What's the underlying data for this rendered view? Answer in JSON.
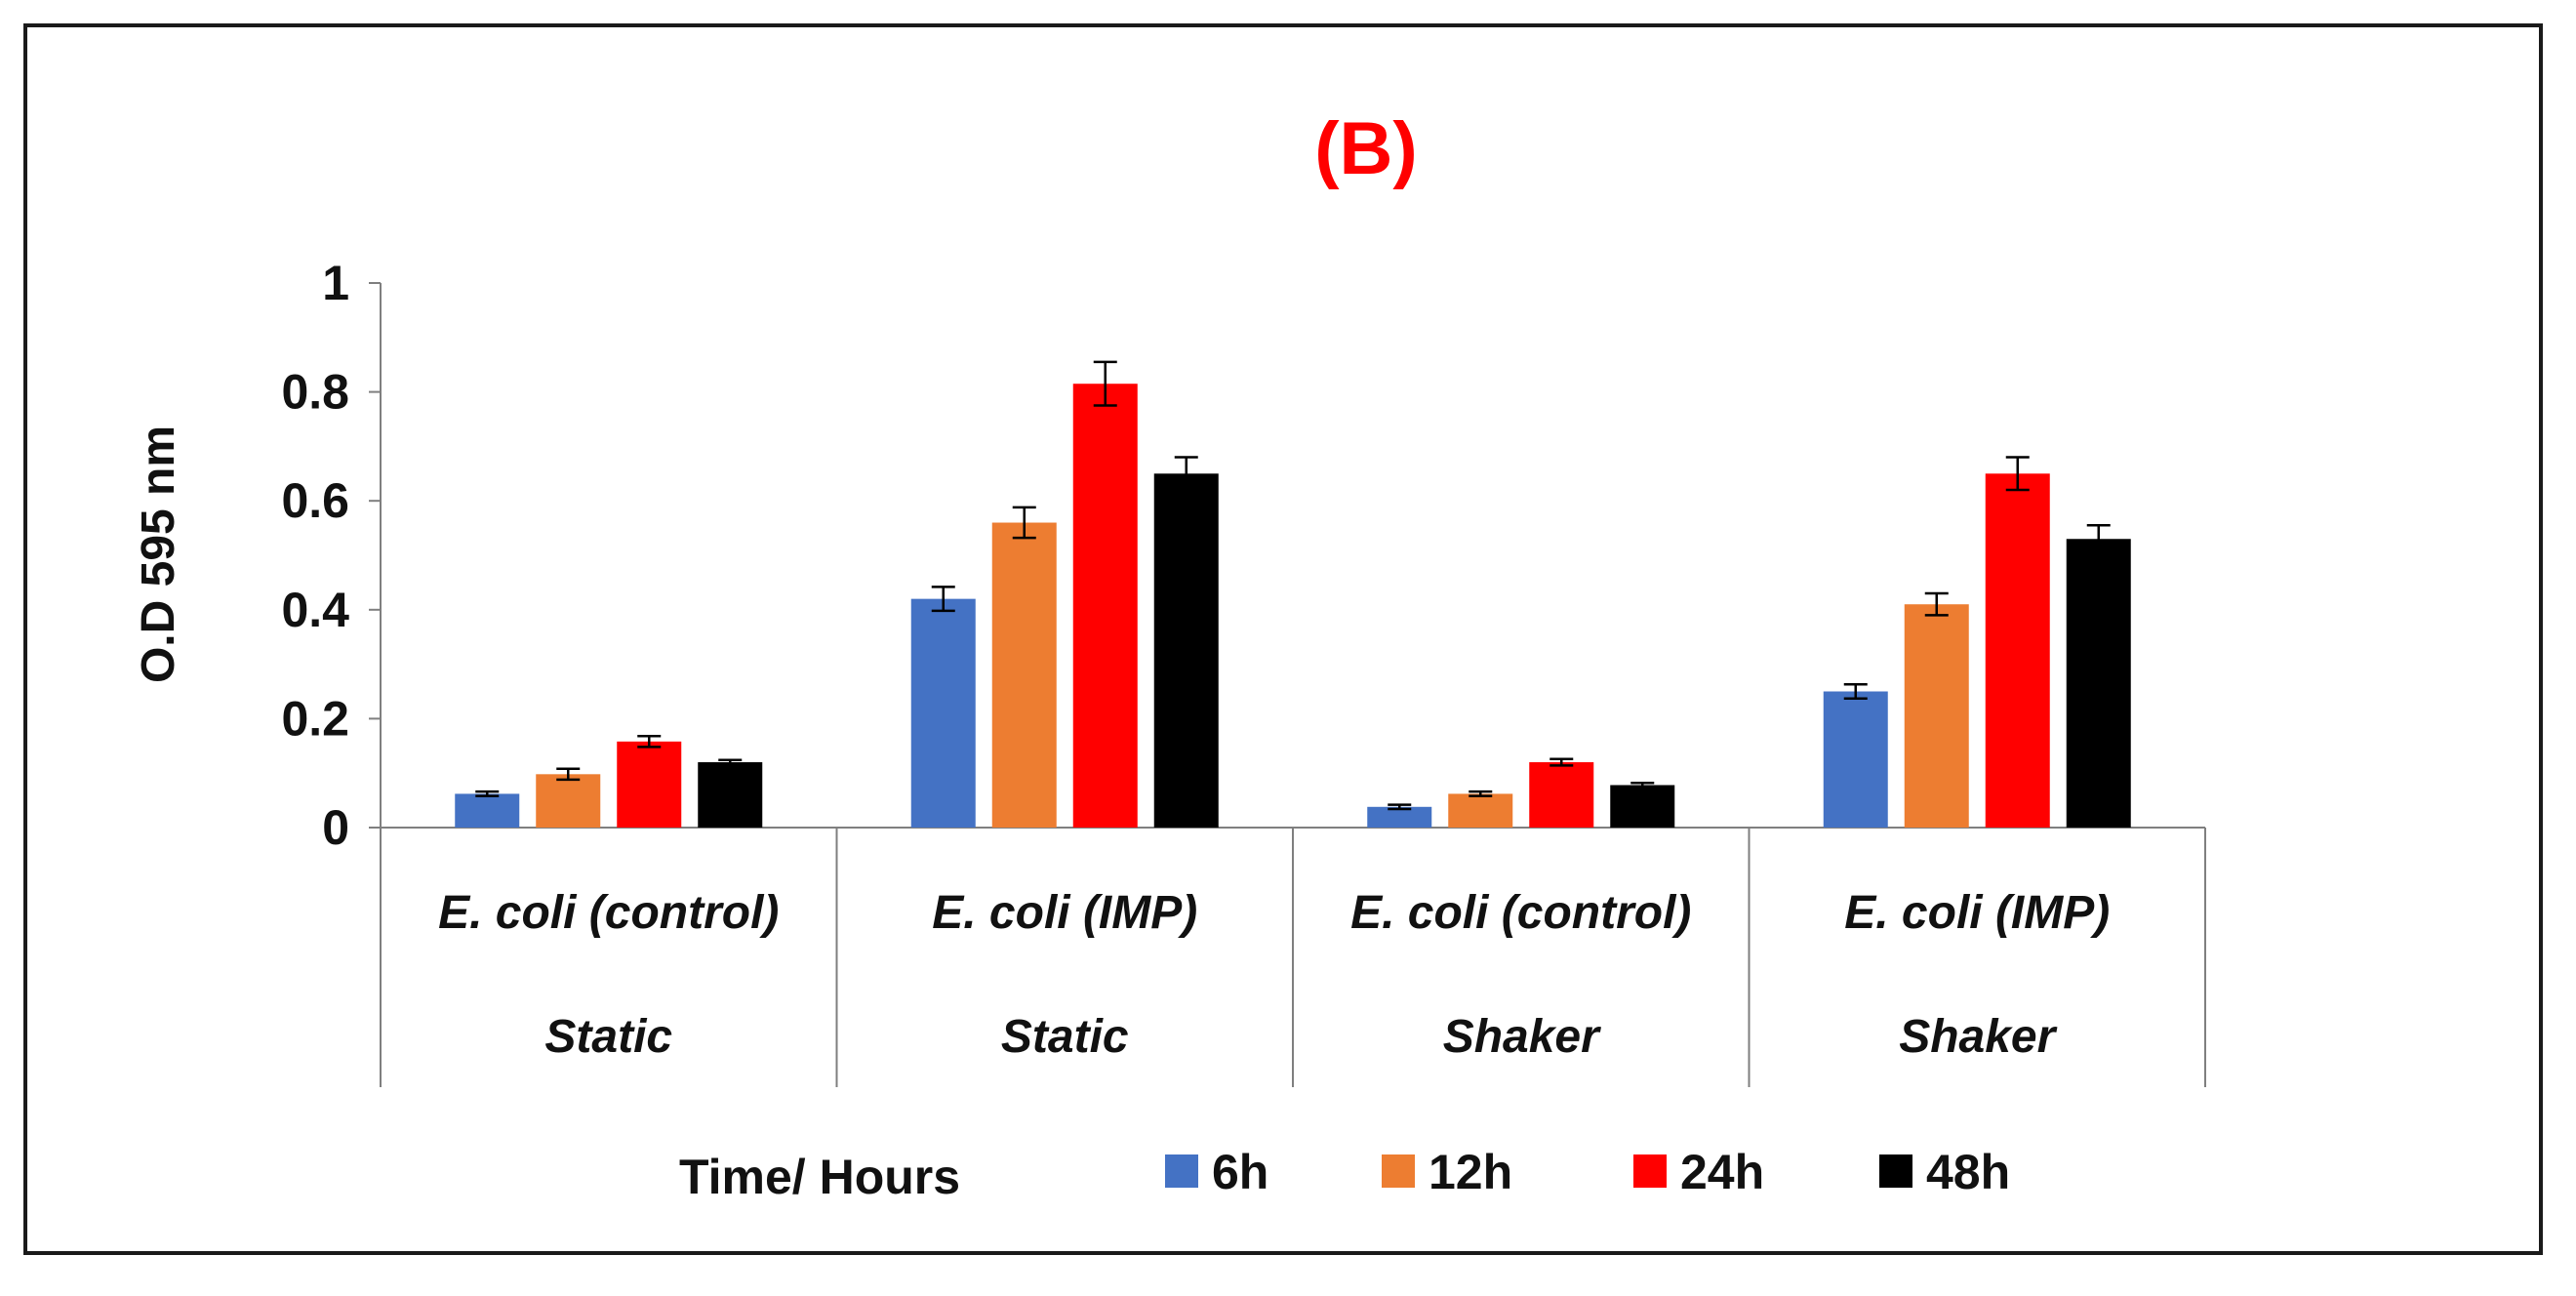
{
  "chart_data": {
    "type": "bar",
    "title": "(B)",
    "ylabel": "O.D 595 nm",
    "xlabel": "Time/ Hours",
    "ylim": [
      0,
      1
    ],
    "yticks": [
      "0",
      "0.2",
      "0.4",
      "0.6",
      "0.8",
      "1"
    ],
    "yticks_values": [
      0,
      0.2,
      0.4,
      0.6,
      0.8,
      1
    ],
    "categories": [
      {
        "label": "E. coli (control)",
        "group": "Static"
      },
      {
        "label": "E. coli (IMP)",
        "group": "Static"
      },
      {
        "label": "E. coli (control)",
        "group": "Shaker"
      },
      {
        "label": "E. coli (IMP)",
        "group": "Shaker"
      }
    ],
    "series": [
      {
        "name": "6h",
        "color": "#4472c4",
        "values": [
          0.062,
          0.42,
          0.038,
          0.25
        ],
        "errors": [
          0.004,
          0.022,
          0.004,
          0.013
        ]
      },
      {
        "name": "12h",
        "color": "#ed7d31",
        "values": [
          0.098,
          0.56,
          0.062,
          0.41
        ],
        "errors": [
          0.01,
          0.028,
          0.004,
          0.02
        ]
      },
      {
        "name": "24h",
        "color": "#ff0000",
        "values": [
          0.158,
          0.815,
          0.12,
          0.65
        ],
        "errors": [
          0.01,
          0.04,
          0.006,
          0.03
        ]
      },
      {
        "name": "48h",
        "color": "#000000",
        "values": [
          0.12,
          0.65,
          0.078,
          0.53
        ],
        "errors": [
          0.004,
          0.03,
          0.004,
          0.025
        ]
      }
    ],
    "legend_position": "bottom"
  }
}
